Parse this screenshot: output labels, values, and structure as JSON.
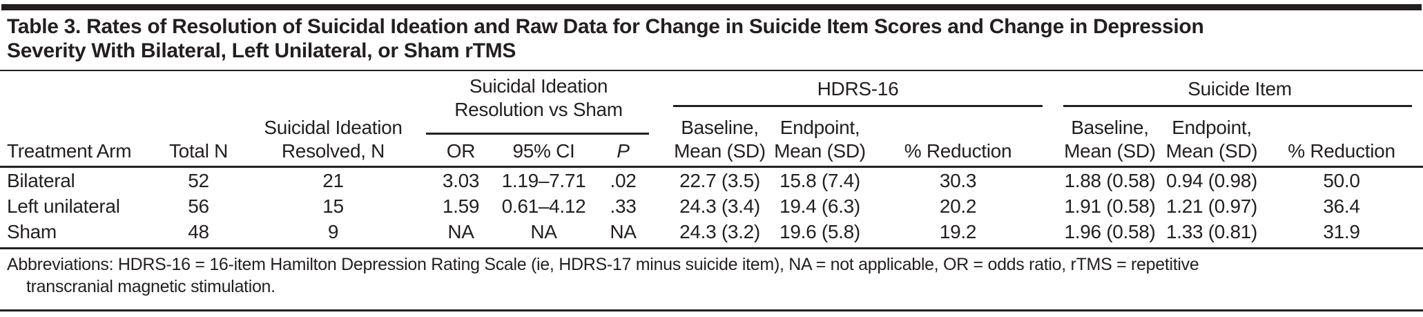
{
  "title_lines": [
    "Table 3. Rates of Resolution of Suicidal Ideation and Raw Data for Change in Suicide Item Scores and Change in Depression",
    "Severity With Bilateral, Left Unilateral, or Sham rTMS"
  ],
  "spanners": {
    "suicidal_ideation_resolution_line1": "Suicidal Ideation",
    "suicidal_ideation_resolution_line2": "Resolution vs Sham",
    "hdrs16": "HDRS-16",
    "suicide_item": "Suicide Item"
  },
  "columns": {
    "treatment_arm": "Treatment Arm",
    "total_n": "Total N",
    "resolved_line1": "Suicidal Ideation",
    "resolved_line2": "Resolved, N",
    "or": "OR",
    "ci": "95% CI",
    "p": "P",
    "baseline": "Baseline,",
    "endpoint": "Endpoint,",
    "mean_sd": "Mean (SD)",
    "pct_reduction": "% Reduction"
  },
  "rows": [
    {
      "arm": "Bilateral",
      "total_n": "52",
      "resolved_n": "21",
      "or": "3.03",
      "ci": "1.19–7.71",
      "p": ".02",
      "hdrs_baseline": "22.7 (3.5)",
      "hdrs_endpoint": "15.8 (7.4)",
      "hdrs_pct": "30.3",
      "si_baseline": "1.88 (0.58)",
      "si_endpoint": "0.94 (0.98)",
      "si_pct": "50.0"
    },
    {
      "arm": "Left unilateral",
      "total_n": "56",
      "resolved_n": "15",
      "or": "1.59",
      "ci": "0.61–4.12",
      "p": ".33",
      "hdrs_baseline": "24.3 (3.4)",
      "hdrs_endpoint": "19.4 (6.3)",
      "hdrs_pct": "20.2",
      "si_baseline": "1.91 (0.58)",
      "si_endpoint": "1.21 (0.97)",
      "si_pct": "36.4"
    },
    {
      "arm": "Sham",
      "total_n": "48",
      "resolved_n": "9",
      "or": "NA",
      "ci": "NA",
      "p": "NA",
      "hdrs_baseline": "24.3 (3.2)",
      "hdrs_endpoint": "19.6 (5.8)",
      "hdrs_pct": "19.2",
      "si_baseline": "1.96 (0.58)",
      "si_endpoint": "1.33 (0.81)",
      "si_pct": "31.9"
    }
  ],
  "footnote_lines": [
    "Abbreviations: HDRS-16 = 16-item Hamilton Depression Rating Scale (ie, HDRS-17 minus suicide item), NA = not applicable, OR = odds ratio, rTMS = repetitive",
    "transcranial magnetic stimulation."
  ],
  "colors": {
    "text": "#231f20",
    "rule": "#231f20",
    "background": "#ffffff"
  },
  "chart_data": {
    "type": "table",
    "title": "Table 3. Rates of Resolution of Suicidal Ideation and Raw Data for Change in Suicide Item Scores and Change in Depression Severity With Bilateral, Left Unilateral, or Sham rTMS",
    "column_groups": [
      "Suicidal Ideation Resolution vs Sham",
      "HDRS-16",
      "Suicide Item"
    ],
    "columns": [
      "Treatment Arm",
      "Total N",
      "Suicidal Ideation Resolved, N",
      "OR",
      "95% CI",
      "P",
      "HDRS-16 Baseline, Mean (SD)",
      "HDRS-16 Endpoint, Mean (SD)",
      "HDRS-16 % Reduction",
      "Suicide Item Baseline, Mean (SD)",
      "Suicide Item Endpoint, Mean (SD)",
      "Suicide Item % Reduction"
    ],
    "rows": [
      [
        "Bilateral",
        "52",
        "21",
        "3.03",
        "1.19–7.71",
        ".02",
        "22.7 (3.5)",
        "15.8 (7.4)",
        "30.3",
        "1.88 (0.58)",
        "0.94 (0.98)",
        "50.0"
      ],
      [
        "Left unilateral",
        "56",
        "15",
        "1.59",
        "0.61–4.12",
        ".33",
        "24.3 (3.4)",
        "19.4 (6.3)",
        "20.2",
        "1.91 (0.58)",
        "1.21 (0.97)",
        "36.4"
      ],
      [
        "Sham",
        "48",
        "9",
        "NA",
        "NA",
        "NA",
        "24.3 (3.2)",
        "19.6 (5.8)",
        "19.2",
        "1.96 (0.58)",
        "1.33 (0.81)",
        "31.9"
      ]
    ],
    "footnote": "Abbreviations: HDRS-16 = 16-item Hamilton Depression Rating Scale (ie, HDRS-17 minus suicide item), NA = not applicable, OR = odds ratio, rTMS = repetitive transcranial magnetic stimulation."
  }
}
